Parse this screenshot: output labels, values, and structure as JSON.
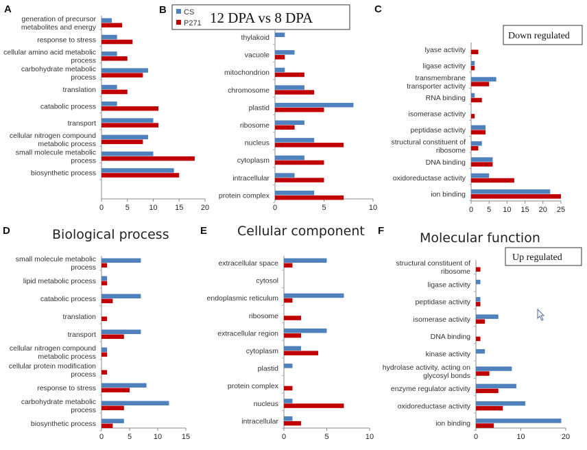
{
  "colors": {
    "cs": "#4f81bd",
    "p271": "#c00000"
  },
  "header": {
    "title": "12 DPA vs 8 DPA"
  },
  "legend": [
    {
      "name": "CS"
    },
    {
      "name": "P271"
    }
  ],
  "sections": {
    "bio": "Biological process",
    "cell": "Cellular component",
    "mol": "Molecular function"
  },
  "regulation": {
    "down": "Down regulated",
    "up": "Up regulated"
  },
  "chart_data": [
    {
      "panel": "A",
      "type": "bar",
      "orientation": "horizontal",
      "categories": [
        [
          "generation of precursor",
          "metabolites and energy"
        ],
        [
          "response to stress"
        ],
        [
          "cellular amino acid metabolic",
          "process"
        ],
        [
          "carbohydrate metabolic",
          "process"
        ],
        [
          "translation"
        ],
        [
          "catabolic process"
        ],
        [
          "transport"
        ],
        [
          "cellular nitrogen compound",
          "metabolic process"
        ],
        [
          "small molecule metabolic",
          "process"
        ],
        [
          "biosynthetic process"
        ]
      ],
      "series": [
        {
          "name": "CS",
          "values": [
            2,
            3,
            3,
            9,
            3,
            3,
            10,
            9,
            10,
            14
          ]
        },
        {
          "name": "P271",
          "values": [
            4,
            6,
            5,
            8,
            5,
            11,
            11,
            8,
            18,
            15
          ]
        }
      ],
      "xlim": [
        0,
        20
      ],
      "ticks": [
        "0",
        "5",
        "10",
        "15",
        "20"
      ]
    },
    {
      "panel": "B",
      "type": "bar",
      "orientation": "horizontal",
      "categories": [
        [
          "thylakoid"
        ],
        [
          "vacuole"
        ],
        [
          "mitochondrion"
        ],
        [
          "chromosome"
        ],
        [
          "plastid"
        ],
        [
          "ribosome"
        ],
        [
          "nucleus"
        ],
        [
          "cytoplasm"
        ],
        [
          "intracellular"
        ],
        [
          "protein complex"
        ]
      ],
      "series": [
        {
          "name": "CS",
          "values": [
            1,
            2,
            1,
            3,
            8,
            3,
            4,
            3,
            2,
            4
          ]
        },
        {
          "name": "P271",
          "values": [
            0,
            1,
            3,
            4,
            5,
            2,
            7,
            5,
            5,
            7
          ]
        }
      ],
      "xlim": [
        0,
        10
      ],
      "ticks": [
        "0",
        "5",
        "10"
      ]
    },
    {
      "panel": "C",
      "type": "bar",
      "orientation": "horizontal",
      "categories": [
        [
          "lyase activity"
        ],
        [
          "ligase activity"
        ],
        [
          "transmembrane",
          "transporter activity"
        ],
        [
          "RNA binding"
        ],
        [
          "isomerase activity"
        ],
        [
          "peptidase activity"
        ],
        [
          "structural constituent of",
          "ribosome"
        ],
        [
          "DNA binding"
        ],
        [
          "oxidoreductase activity"
        ],
        [
          "ion binding"
        ]
      ],
      "series": [
        {
          "name": "CS",
          "values": [
            0,
            1,
            7,
            1,
            0,
            4,
            3,
            6,
            5,
            22
          ]
        },
        {
          "name": "P271",
          "values": [
            2,
            1,
            5,
            3,
            1,
            4,
            2,
            6,
            12,
            25
          ]
        }
      ],
      "xlim": [
        0,
        25
      ],
      "ticks": [
        "0",
        "5",
        "10",
        "15",
        "20",
        "25"
      ]
    },
    {
      "panel": "D",
      "type": "bar",
      "orientation": "horizontal",
      "categories": [
        [
          "small molecule metabolic",
          "process"
        ],
        [
          "lipid metabolic process"
        ],
        [
          "catabolic process"
        ],
        [
          "translation"
        ],
        [
          "transport"
        ],
        [
          "cellular nitrogen compound",
          "metabolic process"
        ],
        [
          "cellular protein modification",
          "process"
        ],
        [
          "response to stress"
        ],
        [
          "carbohydrate metabolic",
          "process"
        ],
        [
          "biosynthetic process"
        ]
      ],
      "series": [
        {
          "name": "CS",
          "values": [
            7,
            1,
            7,
            0,
            7,
            1,
            0,
            8,
            12,
            4
          ]
        },
        {
          "name": "P271",
          "values": [
            1,
            1,
            2,
            1,
            4,
            1,
            1,
            5,
            4,
            2
          ]
        }
      ],
      "xlim": [
        0,
        15
      ],
      "ticks": [
        "0",
        "5",
        "10",
        "15"
      ]
    },
    {
      "panel": "E",
      "type": "bar",
      "orientation": "horizontal",
      "categories": [
        [
          "extracellular space"
        ],
        [
          "cytosol"
        ],
        [
          "endoplasmic reticulum"
        ],
        [
          "ribosome"
        ],
        [
          "extracellular region"
        ],
        [
          "cytoplasm"
        ],
        [
          "plastid"
        ],
        [
          "protein complex"
        ],
        [
          "nucleus"
        ],
        [
          "intracellular"
        ]
      ],
      "series": [
        {
          "name": "CS",
          "values": [
            5,
            0,
            7,
            0,
            5,
            2,
            1,
            0,
            1,
            1
          ]
        },
        {
          "name": "P271",
          "values": [
            1,
            0,
            1,
            2,
            2,
            4,
            0,
            1,
            7,
            2
          ]
        }
      ],
      "xlim": [
        0,
        10
      ],
      "ticks": [
        "0",
        "5",
        "10"
      ]
    },
    {
      "panel": "F",
      "type": "bar",
      "orientation": "horizontal",
      "categories": [
        [
          "structural constituent of",
          "ribosome"
        ],
        [
          "ligase activity"
        ],
        [
          "peptidase activity"
        ],
        [
          "isomerase activity"
        ],
        [
          "DNA binding"
        ],
        [
          "kinase activity"
        ],
        [
          "hydrolase activity, acting on",
          "glycosyl bonds"
        ],
        [
          "enzyme regulator activity"
        ],
        [
          "oxidoreductase activity"
        ],
        [
          "ion binding"
        ]
      ],
      "series": [
        {
          "name": "CS",
          "values": [
            0,
            1,
            1,
            5,
            0,
            2,
            8,
            9,
            11,
            19
          ]
        },
        {
          "name": "P271",
          "values": [
            1,
            0,
            1,
            2,
            1,
            0,
            3,
            5,
            6,
            4
          ]
        }
      ],
      "xlim": [
        0,
        20
      ],
      "ticks": [
        "0",
        "10",
        "20"
      ]
    }
  ]
}
